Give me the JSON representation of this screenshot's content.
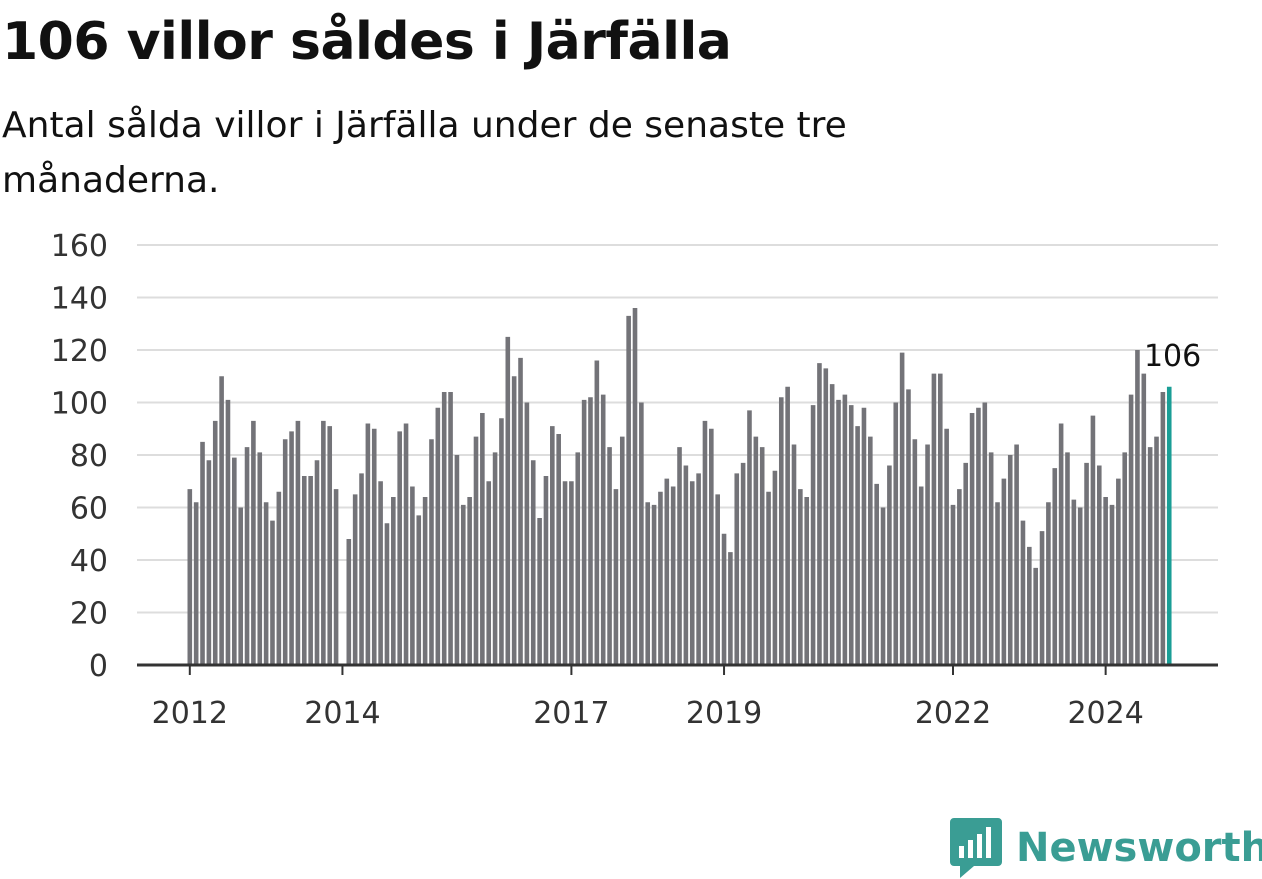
{
  "header": {
    "title": "106 villor såldes i Järfälla",
    "subtitle": "Antal sålda villor i Järfälla under de senaste tre månaderna."
  },
  "brand": {
    "name": "Newsworthy",
    "icon": "newsworthy-logo-icon",
    "color": "#3a9d94"
  },
  "colors": {
    "bar": "#737378",
    "highlight": "#1a9e96",
    "grid": "#dddddd",
    "axis": "#333333"
  },
  "chart_data": {
    "type": "bar",
    "title": "106 villor såldes i Järfälla",
    "subtitle": "Antal sålda villor i Järfälla under de senaste tre månaderna.",
    "ylim": [
      0,
      160
    ],
    "yticks": [
      0,
      20,
      40,
      60,
      80,
      100,
      120,
      140,
      160
    ],
    "grid": true,
    "x_tick_labels": [
      {
        "label": "2012",
        "index": 0
      },
      {
        "label": "2014",
        "index": 24
      },
      {
        "label": "2017",
        "index": 60
      },
      {
        "label": "2019",
        "index": 84
      },
      {
        "label": "2022",
        "index": 120
      },
      {
        "label": "2024",
        "index": 144
      }
    ],
    "values": [
      67,
      62,
      85,
      78,
      93,
      110,
      101,
      79,
      60,
      83,
      93,
      81,
      62,
      55,
      66,
      86,
      89,
      93,
      72,
      72,
      78,
      93,
      91,
      67,
      0,
      48,
      65,
      73,
      92,
      90,
      70,
      54,
      64,
      89,
      92,
      68,
      57,
      64,
      86,
      98,
      104,
      104,
      80,
      61,
      64,
      87,
      96,
      70,
      81,
      94,
      125,
      110,
      117,
      100,
      78,
      56,
      72,
      91,
      88,
      70,
      70,
      81,
      101,
      102,
      116,
      103,
      83,
      67,
      87,
      133,
      136,
      100,
      62,
      61,
      66,
      71,
      68,
      83,
      76,
      70,
      73,
      93,
      90,
      65,
      50,
      43,
      73,
      77,
      97,
      87,
      83,
      66,
      74,
      102,
      106,
      84,
      67,
      64,
      99,
      115,
      113,
      107,
      101,
      103,
      99,
      91,
      98,
      87,
      69,
      60,
      76,
      100,
      119,
      105,
      86,
      68,
      84,
      111,
      111,
      90,
      61,
      67,
      77,
      96,
      98,
      100,
      81,
      62,
      71,
      80,
      84,
      55,
      45,
      37,
      51,
      62,
      75,
      92,
      81,
      63,
      60,
      77,
      95,
      76,
      64,
      61,
      71,
      81,
      103,
      120,
      111,
      83,
      87,
      104,
      106
    ],
    "highlight_last": true,
    "last_label": "106"
  }
}
